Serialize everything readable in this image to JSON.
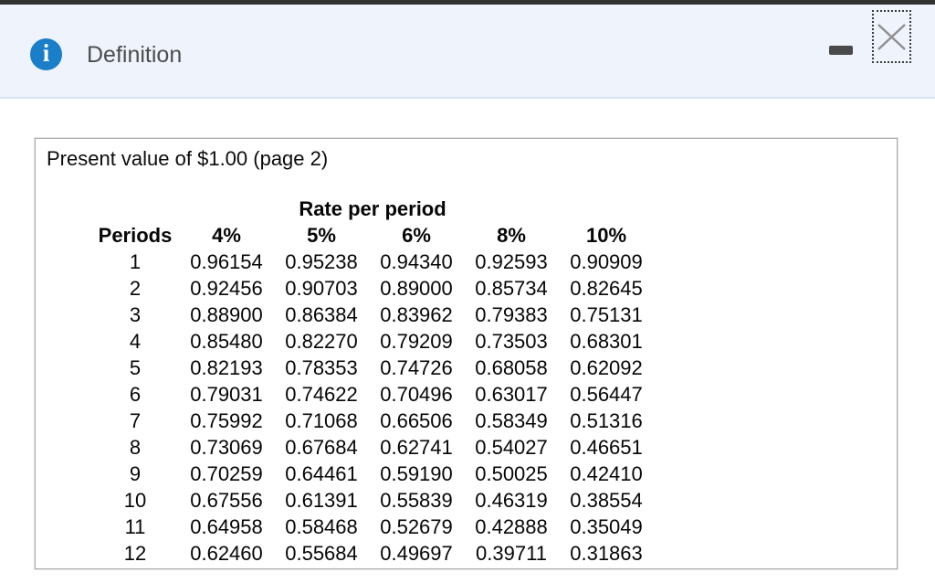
{
  "window": {
    "title": "Definition",
    "info_icon_glyph": "i"
  },
  "colors": {
    "titlebar_bg": "#eef3fc",
    "titlebar_border": "#d7e3f4",
    "icon_blue": "#1b7ec8",
    "top_strip": "#323232",
    "panel_border": "#ababab",
    "close_x_gray": "#8f8f8f"
  },
  "panel": {
    "title": "Present value of $1.00 (page 2)",
    "table": {
      "group_header": "Rate per period",
      "columns": [
        "Periods",
        "4%",
        "5%",
        "6%",
        "8%",
        "10%"
      ],
      "rows": [
        [
          "1",
          "0.96154",
          "0.95238",
          "0.94340",
          "0.92593",
          "0.90909"
        ],
        [
          "2",
          "0.92456",
          "0.90703",
          "0.89000",
          "0.85734",
          "0.82645"
        ],
        [
          "3",
          "0.88900",
          "0.86384",
          "0.83962",
          "0.79383",
          "0.75131"
        ],
        [
          "4",
          "0.85480",
          "0.82270",
          "0.79209",
          "0.73503",
          "0.68301"
        ],
        [
          "5",
          "0.82193",
          "0.78353",
          "0.74726",
          "0.68058",
          "0.62092"
        ],
        [
          "6",
          "0.79031",
          "0.74622",
          "0.70496",
          "0.63017",
          "0.56447"
        ],
        [
          "7",
          "0.75992",
          "0.71068",
          "0.66506",
          "0.58349",
          "0.51316"
        ],
        [
          "8",
          "0.73069",
          "0.67684",
          "0.62741",
          "0.54027",
          "0.46651"
        ],
        [
          "9",
          "0.70259",
          "0.64461",
          "0.59190",
          "0.50025",
          "0.42410"
        ],
        [
          "10",
          "0.67556",
          "0.61391",
          "0.55839",
          "0.46319",
          "0.38554"
        ],
        [
          "11",
          "0.64958",
          "0.58468",
          "0.52679",
          "0.42888",
          "0.35049"
        ],
        [
          "12",
          "0.62460",
          "0.55684",
          "0.49697",
          "0.39711",
          "0.31863"
        ]
      ]
    }
  }
}
